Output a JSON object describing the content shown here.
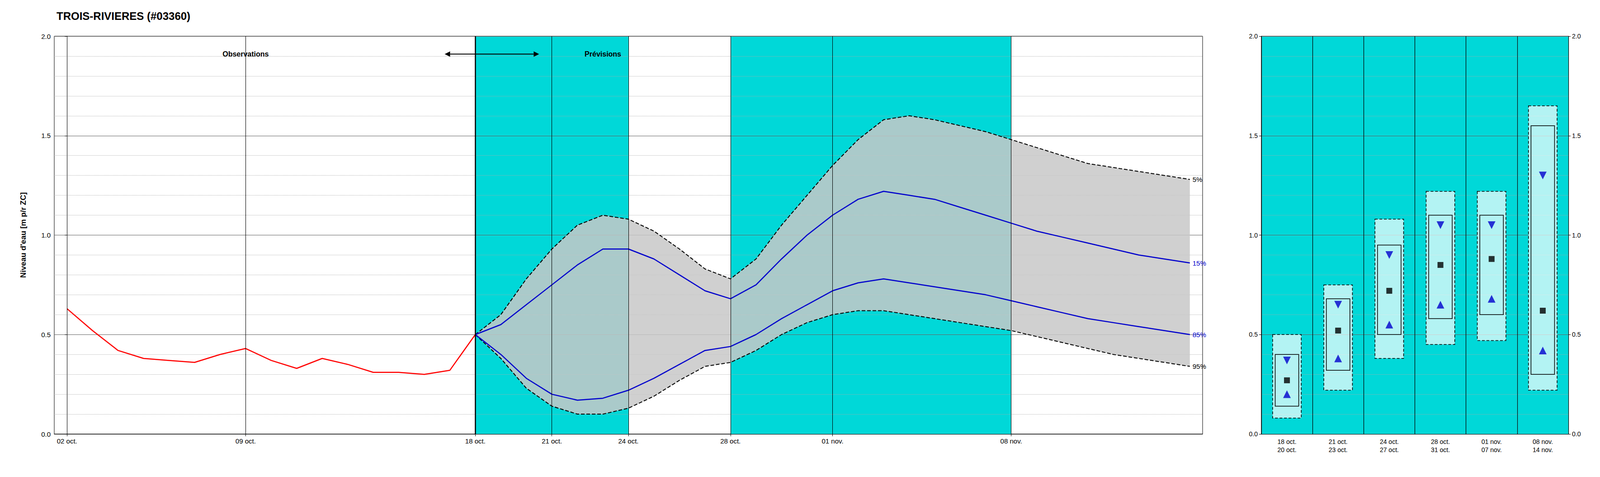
{
  "chart_data": [
    {
      "type": "line",
      "title": "TROIS-RIVIERES (#03360)",
      "ylabel": "Niveau d'eau [m p/r ZC]",
      "xlim": [
        -0.5,
        44.5
      ],
      "xticks": [
        {
          "value": 0,
          "label": "02 oct."
        },
        {
          "value": 7,
          "label": "09 oct."
        },
        {
          "value": 16,
          "label": "18 oct."
        },
        {
          "value": 19,
          "label": "21 oct."
        },
        {
          "value": 22,
          "label": "24 oct."
        },
        {
          "value": 26,
          "label": "28 oct."
        },
        {
          "value": 30,
          "label": "01 nov."
        },
        {
          "value": 37,
          "label": "08 nov."
        }
      ],
      "ylim": [
        0.0,
        2.0
      ],
      "yticks": [
        {
          "value": 0,
          "label": "0.0"
        },
        0.5,
        {
          "value": 1,
          "label": "1.0"
        },
        1.5,
        {
          "value": 2,
          "label": "2.0"
        }
      ],
      "grid": true,
      "bands": {
        "ranges": [
          [
            16,
            22
          ],
          [
            26,
            37
          ]
        ],
        "color": "#00d8d8"
      },
      "fill": {
        "between": [
          "5%",
          "95%"
        ],
        "color": "#c8c8c8"
      },
      "divider_x": 16,
      "series": [
        {
          "name": "5%",
          "color": "#000000",
          "line_style": "dashed",
          "x": [
            16,
            17,
            18,
            19,
            20,
            21,
            22,
            23,
            24,
            25,
            26,
            27,
            28,
            29,
            30,
            31,
            32,
            33,
            34,
            35,
            36,
            37,
            38,
            39,
            40,
            41,
            42,
            43,
            44
          ],
          "values": [
            0.5,
            0.6,
            0.78,
            0.93,
            1.05,
            1.1,
            1.08,
            1.02,
            0.93,
            0.83,
            0.78,
            0.88,
            1.05,
            1.2,
            1.35,
            1.48,
            1.58,
            1.6,
            1.58,
            1.55,
            1.52,
            1.48,
            1.44,
            1.4,
            1.36,
            1.34,
            1.32,
            1.3,
            1.28
          ]
        },
        {
          "name": "95%",
          "color": "#000000",
          "line_style": "dashed",
          "x": [
            16,
            17,
            18,
            19,
            20,
            21,
            22,
            23,
            24,
            25,
            26,
            27,
            28,
            29,
            30,
            31,
            32,
            33,
            34,
            35,
            36,
            37,
            38,
            39,
            40,
            41,
            42,
            43,
            44
          ],
          "values": [
            0.5,
            0.38,
            0.23,
            0.14,
            0.1,
            0.1,
            0.13,
            0.19,
            0.27,
            0.34,
            0.36,
            0.42,
            0.5,
            0.56,
            0.6,
            0.62,
            0.62,
            0.6,
            0.58,
            0.56,
            0.54,
            0.52,
            0.49,
            0.46,
            0.43,
            0.4,
            0.38,
            0.36,
            0.34
          ]
        },
        {
          "name": "15%",
          "color": "#0000cc",
          "line_style": "solid",
          "x": [
            16,
            17,
            18,
            19,
            20,
            21,
            22,
            23,
            24,
            25,
            26,
            27,
            28,
            29,
            30,
            31,
            32,
            33,
            34,
            35,
            36,
            37,
            38,
            39,
            40,
            41,
            42,
            43,
            44
          ],
          "values": [
            0.5,
            0.55,
            0.65,
            0.75,
            0.85,
            0.93,
            0.93,
            0.88,
            0.8,
            0.72,
            0.68,
            0.75,
            0.88,
            1.0,
            1.1,
            1.18,
            1.22,
            1.2,
            1.18,
            1.14,
            1.1,
            1.06,
            1.02,
            0.99,
            0.96,
            0.93,
            0.9,
            0.88,
            0.86
          ]
        },
        {
          "name": "85%",
          "color": "#0000cc",
          "line_style": "solid",
          "x": [
            16,
            17,
            18,
            19,
            20,
            21,
            22,
            23,
            24,
            25,
            26,
            27,
            28,
            29,
            30,
            31,
            32,
            33,
            34,
            35,
            36,
            37,
            38,
            39,
            40,
            41,
            42,
            43,
            44
          ],
          "values": [
            0.5,
            0.4,
            0.28,
            0.2,
            0.17,
            0.18,
            0.22,
            0.28,
            0.35,
            0.42,
            0.44,
            0.5,
            0.58,
            0.65,
            0.72,
            0.76,
            0.78,
            0.76,
            0.74,
            0.72,
            0.7,
            0.67,
            0.64,
            0.61,
            0.58,
            0.56,
            0.54,
            0.52,
            0.5
          ]
        },
        {
          "color": "#ff0000",
          "line_style": "solid",
          "x": [
            0,
            1,
            2,
            3,
            4,
            5,
            6,
            7,
            8,
            9,
            10,
            11,
            12,
            13,
            14,
            15,
            16
          ],
          "values": [
            0.63,
            0.52,
            0.42,
            0.38,
            0.37,
            0.36,
            0.4,
            0.43,
            0.37,
            0.33,
            0.38,
            0.35,
            0.31,
            0.31,
            0.3,
            0.32,
            0.5
          ]
        }
      ],
      "annotations": [
        {
          "text": "Observations",
          "x": 7.0,
          "y": 1.91
        },
        {
          "text": "Prévisions",
          "x": 21.0,
          "y": 1.91,
          "color": "#000000"
        }
      ],
      "arrow": {
        "x": [
          14.8,
          18.5
        ],
        "y": 1.91
      }
    },
    {
      "type": "box",
      "categories": [
        "18 oct.\n20 oct.",
        "21 oct.\n23 oct.",
        "24 oct.\n27 oct.",
        "28 oct.\n31 oct.",
        "01 nov.\n07 nov.",
        "08 nov.\n14 nov."
      ],
      "ylim": [
        0.0,
        2.0
      ],
      "yticks": [
        {
          "value": 0,
          "label": "0.0"
        },
        0.5,
        {
          "value": 1,
          "label": "1.0"
        },
        1.5,
        {
          "value": 2,
          "label": "2.0"
        }
      ],
      "grid": true,
      "background": {
        "shaded": [
          true,
          true,
          true,
          true,
          true,
          true
        ],
        "color": "#00d8d8"
      },
      "outer_lo": [
        0.08,
        0.22,
        0.38,
        0.45,
        0.47,
        0.22
      ],
      "outer_hi": [
        0.5,
        0.75,
        1.08,
        1.22,
        1.22,
        1.65
      ],
      "box_lo": [
        0.14,
        0.32,
        0.5,
        0.58,
        0.6,
        0.3
      ],
      "box_hi": [
        0.4,
        0.68,
        0.95,
        1.1,
        1.1,
        1.55
      ],
      "series": [
        {
          "marker": "triangle-down",
          "color": "#0000cc",
          "values": [
            0.37,
            0.65,
            0.9,
            1.05,
            1.05,
            1.3
          ]
        },
        {
          "marker": "square",
          "color": "#000000",
          "values": [
            0.27,
            0.52,
            0.72,
            0.85,
            0.88,
            0.62
          ]
        },
        {
          "marker": "triangle-up",
          "color": "#0000cc",
          "values": [
            0.2,
            0.38,
            0.55,
            0.65,
            0.68,
            0.42
          ]
        }
      ]
    }
  ]
}
